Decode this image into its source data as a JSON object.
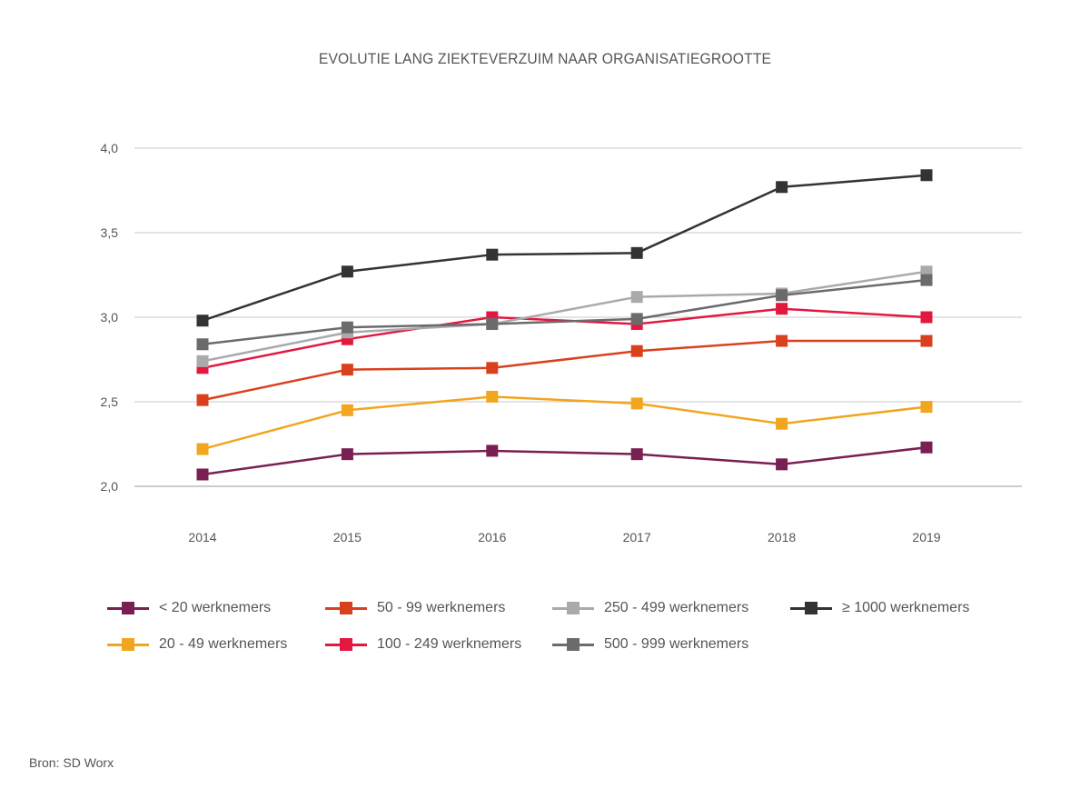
{
  "chart_data": {
    "type": "line",
    "title": "EVOLUTIE LANG ZIEKTEVERZUIM NAAR ORGANISATIEGROOTTE",
    "xlabel": "",
    "ylabel": "",
    "x": [
      "2014",
      "2015",
      "2016",
      "2017",
      "2018",
      "2019"
    ],
    "ylim": [
      2.0,
      4.0
    ],
    "yticks": [
      "2,0",
      "2,5",
      "3,0",
      "3,5",
      "4,0"
    ],
    "grid": true,
    "legend_position": "bottom",
    "series": [
      {
        "name": "< 20 werknemers",
        "color": "#7a1f52",
        "values": [
          2.07,
          2.19,
          2.21,
          2.19,
          2.13,
          2.23
        ]
      },
      {
        "name": "20 - 49 werknemers",
        "color": "#f2a51f",
        "values": [
          2.22,
          2.45,
          2.53,
          2.49,
          2.37,
          2.47
        ]
      },
      {
        "name": "50 - 99 werknemers",
        "color": "#d9411e",
        "values": [
          2.51,
          2.69,
          2.7,
          2.8,
          2.86,
          2.86
        ]
      },
      {
        "name": "100 - 249 werknemers",
        "color": "#e3183f",
        "values": [
          2.7,
          2.87,
          3.0,
          2.96,
          3.05,
          3.0
        ]
      },
      {
        "name": "250 - 499 werknemers",
        "color": "#aaaaad",
        "values": [
          2.74,
          2.91,
          2.96,
          3.12,
          3.14,
          3.27
        ]
      },
      {
        "name": "500 - 999 werknemers",
        "color": "#6b6b6d",
        "values": [
          2.84,
          2.94,
          2.96,
          2.99,
          3.13,
          3.22
        ]
      },
      {
        "name": "≥ 1000 werknemers",
        "color": "#333333",
        "values": [
          2.98,
          3.27,
          3.37,
          3.38,
          3.77,
          3.84
        ]
      }
    ]
  },
  "legend_order": [
    0,
    2,
    4,
    6,
    1,
    3,
    5
  ],
  "source": "Bron: SD Worx"
}
